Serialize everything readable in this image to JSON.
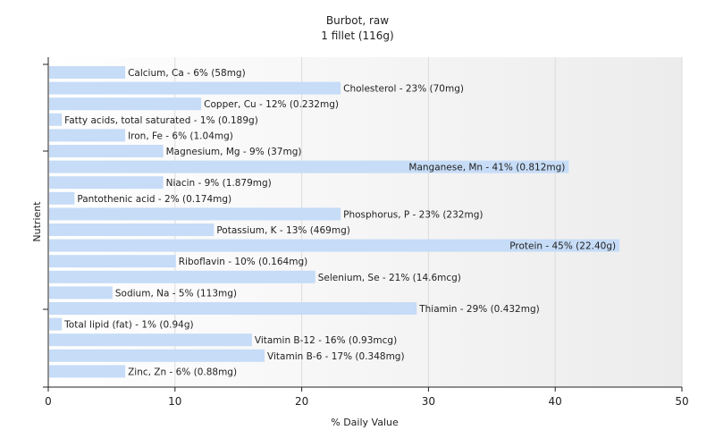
{
  "chart_data": {
    "type": "bar",
    "orientation": "horizontal",
    "title": "Burbot, raw",
    "subtitle": "1 fillet (116g)",
    "xlabel": "% Daily Value",
    "ylabel": "Nutrient",
    "xlim": [
      0,
      50
    ],
    "xticks": [
      "0",
      "10",
      "20",
      "30",
      "40",
      "50"
    ],
    "grid": true,
    "bar_color": "#c6dcf7",
    "categories": [
      "Calcium, Ca",
      "Cholesterol",
      "Copper, Cu",
      "Fatty acids, total saturated",
      "Iron, Fe",
      "Magnesium, Mg",
      "Manganese, Mn",
      "Niacin",
      "Pantothenic acid",
      "Phosphorus, P",
      "Potassium, K",
      "Protein",
      "Riboflavin",
      "Selenium, Se",
      "Sodium, Na",
      "Thiamin",
      "Total lipid (fat)",
      "Vitamin B-12",
      "Vitamin B-6",
      "Zinc, Zn"
    ],
    "values": [
      6,
      23,
      12,
      1,
      6,
      9,
      41,
      9,
      2,
      23,
      13,
      45,
      10,
      21,
      5,
      29,
      1,
      16,
      17,
      6
    ],
    "labels": [
      "Calcium, Ca - 6% (58mg)",
      "Cholesterol - 23% (70mg)",
      "Copper, Cu - 12% (0.232mg)",
      "Fatty acids, total saturated - 1% (0.189g)",
      "Iron, Fe - 6% (1.04mg)",
      "Magnesium, Mg - 9% (37mg)",
      "Manganese, Mn - 41% (0.812mg)",
      "Niacin - 9% (1.879mg)",
      "Pantothenic acid - 2% (0.174mg)",
      "Phosphorus, P - 23% (232mg)",
      "Potassium, K - 13% (469mg)",
      "Protein - 45% (22.40g)",
      "Riboflavin - 10% (0.164mg)",
      "Selenium, Se - 21% (14.6mcg)",
      "Sodium, Na - 5% (113mg)",
      "Thiamin - 29% (0.432mg)",
      "Total lipid (fat) - 1% (0.94g)",
      "Vitamin B-12 - 16% (0.93mcg)",
      "Vitamin B-6 - 17% (0.348mg)",
      "Zinc, Zn - 6% (0.88mg)"
    ]
  }
}
